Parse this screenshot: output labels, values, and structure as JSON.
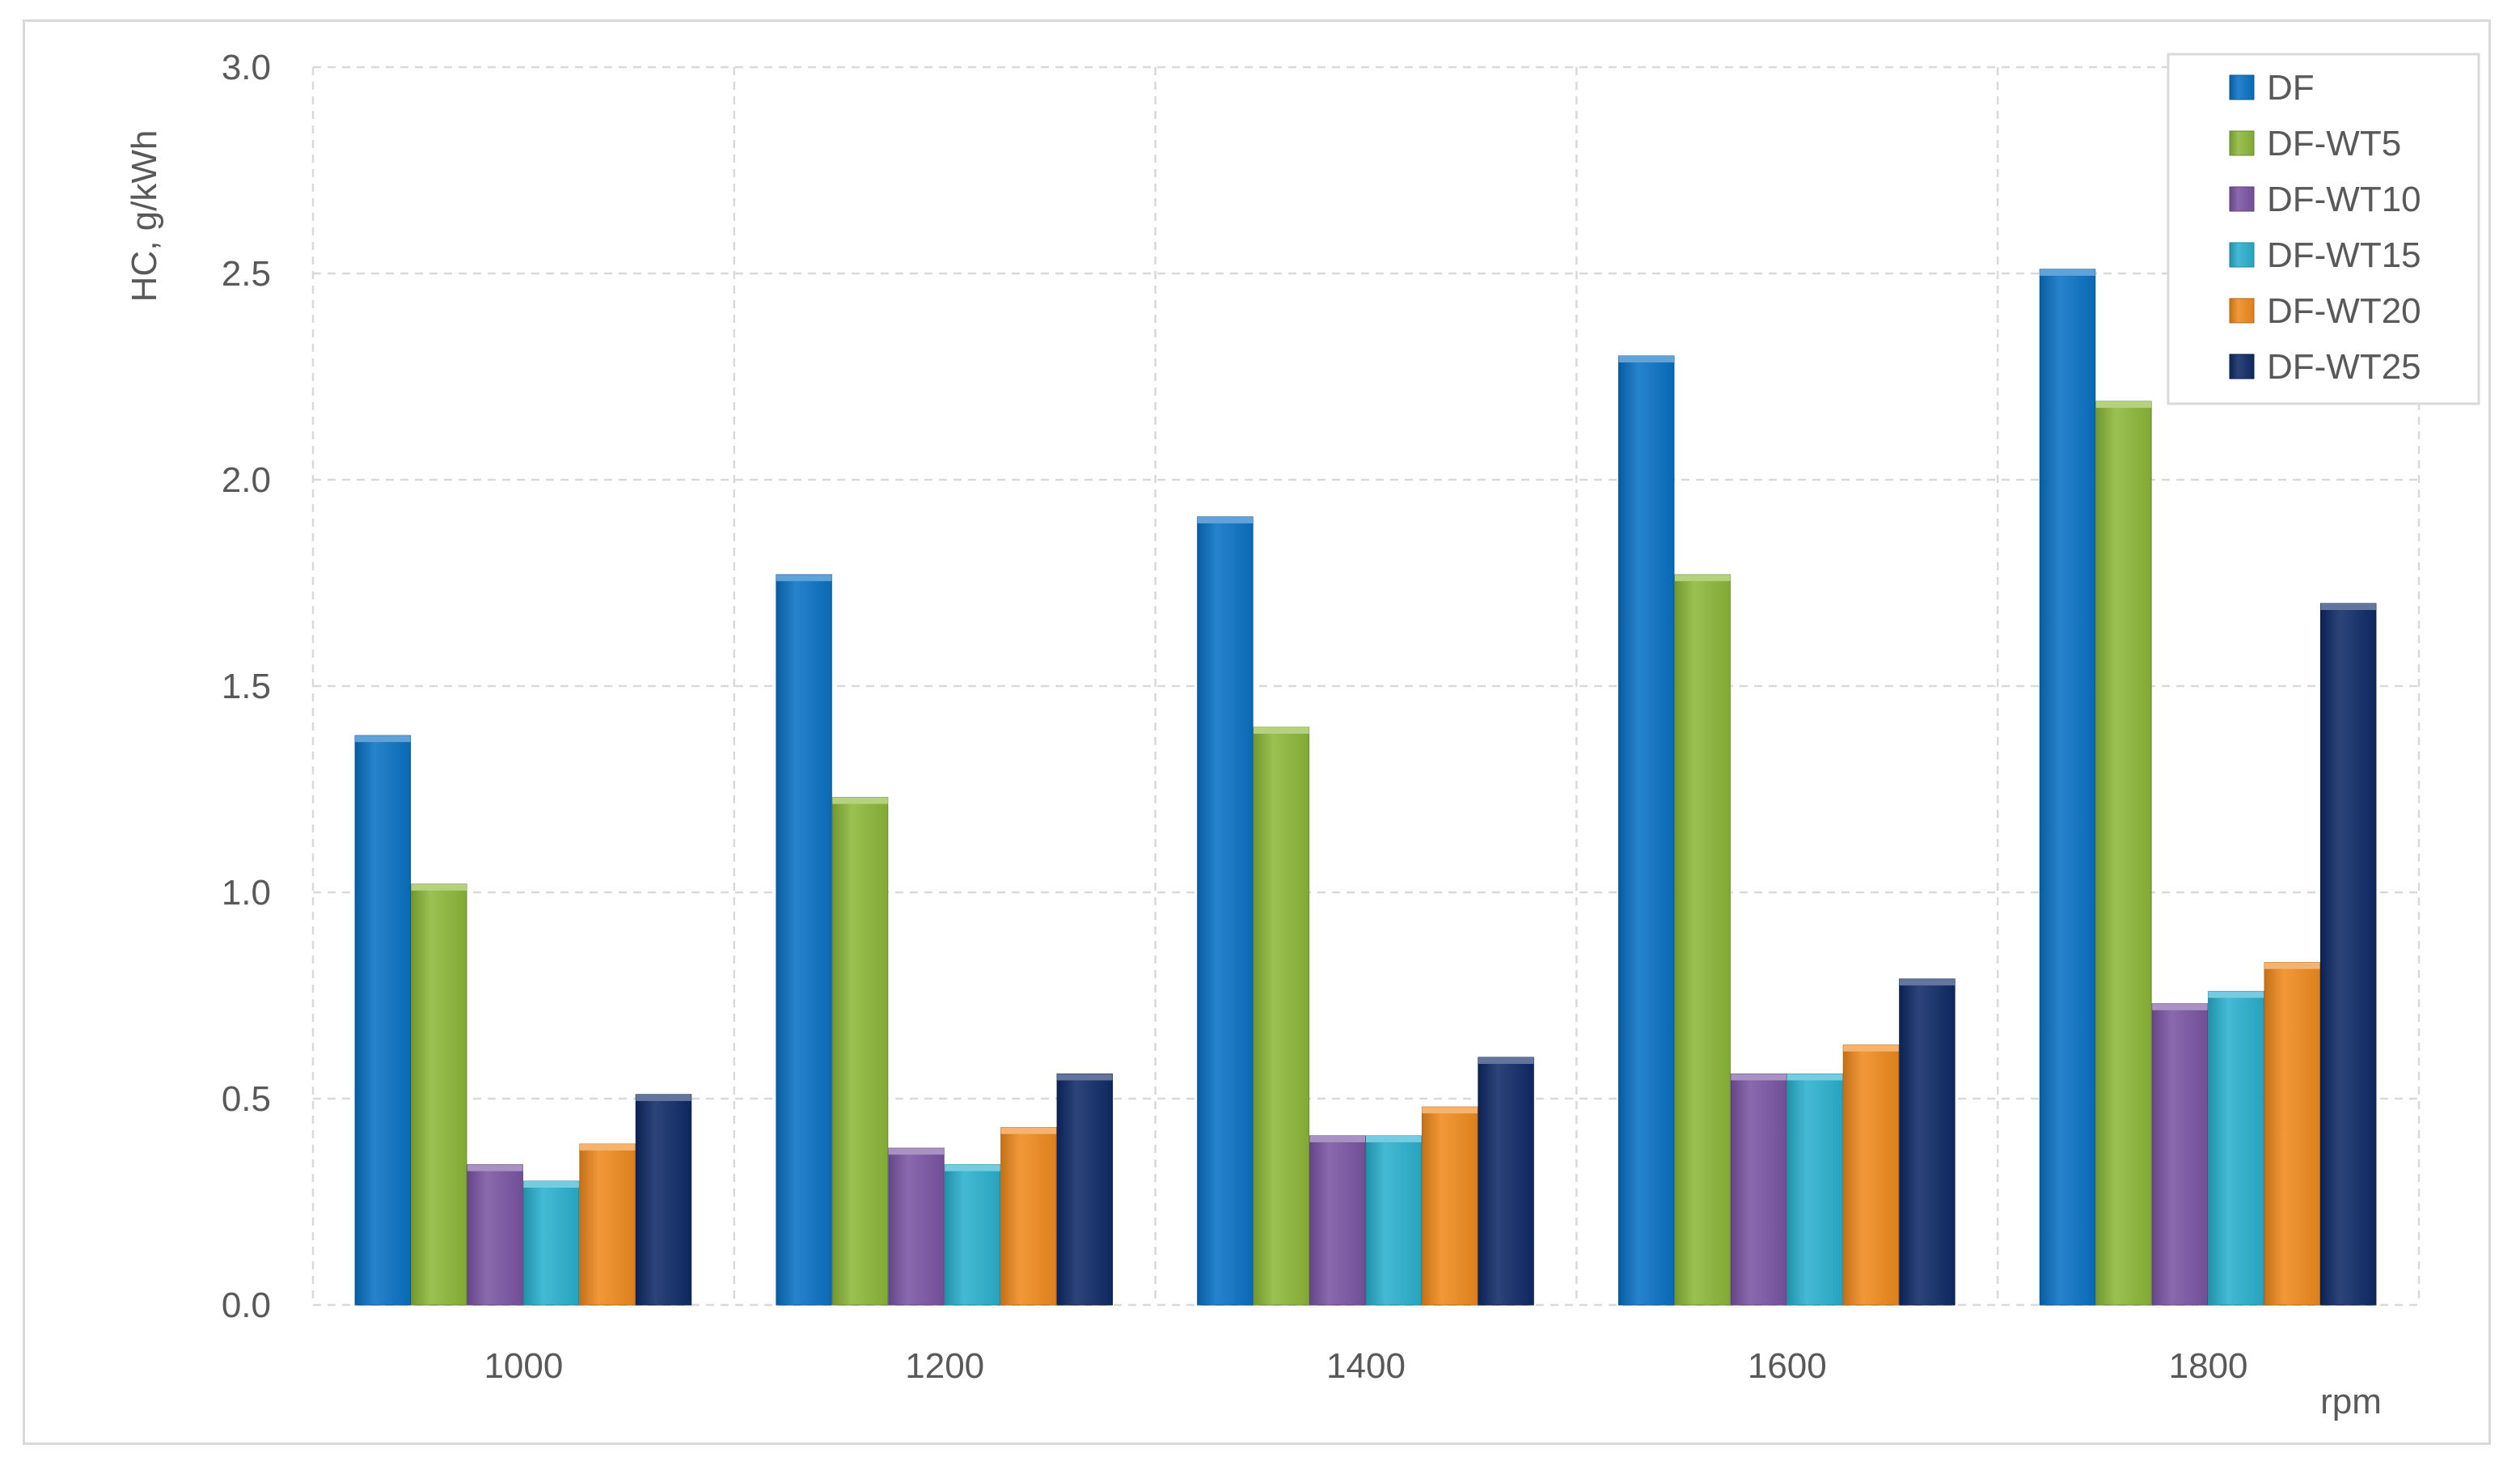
{
  "chart_data": {
    "type": "bar",
    "title": "",
    "xlabel": "rpm",
    "ylabel": "HC, g/kWh",
    "ylim": [
      0,
      3.0
    ],
    "yticks": [
      "0.0",
      "0.5",
      "1.0",
      "1.5",
      "2.0",
      "2.5",
      "3.0"
    ],
    "grid": true,
    "legend_position": "top-right",
    "categories": [
      "1000",
      "1200",
      "1400",
      "1600",
      "1800"
    ],
    "series": [
      {
        "name": "DF",
        "color": "#0a72c4",
        "values": [
          1.38,
          1.77,
          1.91,
          2.3,
          2.51
        ]
      },
      {
        "name": "DF-WT5",
        "color": "#8cb83a",
        "values": [
          1.02,
          1.23,
          1.4,
          1.77,
          2.19
        ]
      },
      {
        "name": "DF-WT10",
        "color": "#7b55a3",
        "values": [
          0.34,
          0.38,
          0.41,
          0.56,
          0.73
        ]
      },
      {
        "name": "DF-WT15",
        "color": "#2ab1cf",
        "values": [
          0.3,
          0.34,
          0.41,
          0.56,
          0.76
        ]
      },
      {
        "name": "DF-WT20",
        "color": "#f08a1e",
        "values": [
          0.39,
          0.43,
          0.48,
          0.63,
          0.83
        ]
      },
      {
        "name": "DF-WT25",
        "color": "#0f2a66",
        "values": [
          0.51,
          0.56,
          0.6,
          0.79,
          1.7
        ]
      }
    ]
  }
}
